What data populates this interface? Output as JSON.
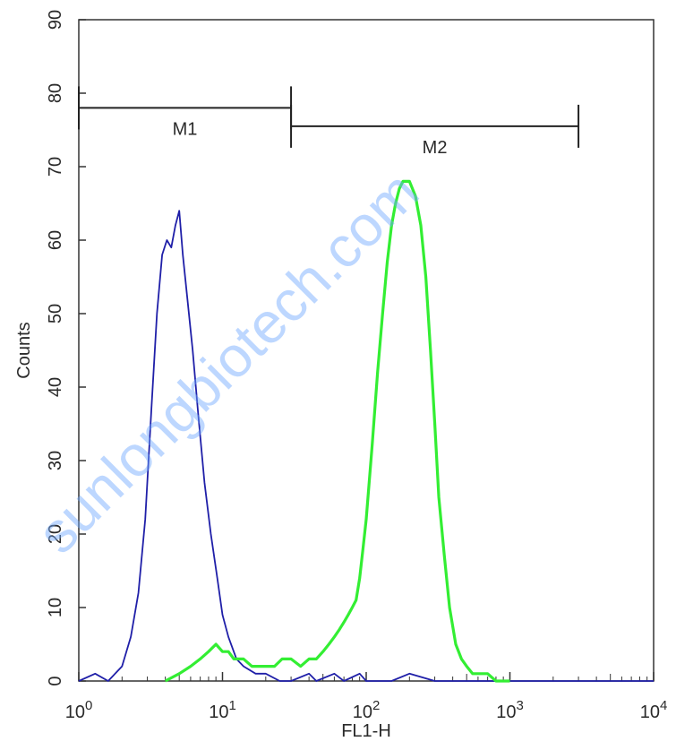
{
  "chart_data": {
    "type": "line",
    "title": "",
    "xlabel": "FL1-H",
    "ylabel": "Counts",
    "xscale": "log",
    "xlim": [
      1,
      10000
    ],
    "ylim": [
      0,
      90
    ],
    "y_ticks": [
      "0",
      "10",
      "20",
      "30",
      "40",
      "50",
      "60",
      "70",
      "80",
      "90"
    ],
    "x_ticks": [
      {
        "value": 1,
        "base": "10",
        "exp": "0"
      },
      {
        "value": 10,
        "base": "10",
        "exp": "1"
      },
      {
        "value": 100,
        "base": "10",
        "exp": "2"
      },
      {
        "value": 1000,
        "base": "10",
        "exp": "3"
      },
      {
        "value": 10000,
        "base": "10",
        "exp": "4"
      }
    ],
    "grid": false,
    "legend": "none",
    "series": [
      {
        "color": "#1f1fa8",
        "x": [
          1,
          1.3,
          1.6,
          2.0,
          2.3,
          2.6,
          2.9,
          3.2,
          3.5,
          3.8,
          4.1,
          4.4,
          4.7,
          5.0,
          5.3,
          5.7,
          6.2,
          6.8,
          7.5,
          8.3,
          9.2,
          10,
          11,
          12.5,
          14,
          17,
          20,
          25,
          30,
          40,
          45,
          60,
          70,
          90,
          100,
          150,
          200,
          300,
          500,
          1000,
          10000
        ],
        "y": [
          0,
          1,
          0,
          2,
          6,
          12,
          22,
          37,
          50,
          58,
          60,
          59,
          62,
          64,
          58,
          52,
          45,
          36,
          27,
          20,
          14,
          9,
          6,
          3,
          2,
          1,
          1,
          0,
          0,
          1,
          0,
          1,
          0,
          1,
          0,
          0,
          1,
          0,
          0,
          0,
          0
        ]
      },
      {
        "color": "#33ee33",
        "x": [
          4,
          5,
          6,
          7,
          8,
          9,
          10,
          11,
          12,
          14,
          16,
          18,
          20,
          23,
          26,
          30,
          35,
          40,
          45,
          50,
          55,
          60,
          65,
          70,
          75,
          80,
          85,
          90,
          95,
          100,
          110,
          120,
          130,
          140,
          150,
          160,
          170,
          180,
          190,
          200,
          220,
          240,
          260,
          280,
          300,
          320,
          350,
          380,
          420,
          460,
          500,
          550,
          600,
          700,
          800,
          900,
          1000
        ],
        "y": [
          0,
          1,
          2,
          3,
          4,
          5,
          4,
          4,
          3,
          3,
          2,
          2,
          2,
          2,
          3,
          3,
          2,
          3,
          3,
          4,
          5,
          6,
          7,
          8,
          9,
          10,
          11,
          14,
          18,
          22,
          32,
          42,
          50,
          57,
          62,
          65,
          67,
          68,
          68,
          68,
          66,
          62,
          55,
          45,
          35,
          25,
          17,
          10,
          5,
          3,
          2,
          1,
          1,
          1,
          0,
          0,
          0
        ]
      }
    ],
    "markers": [
      {
        "label": "M1",
        "x_start": 1,
        "x_end": 30,
        "y": 78
      },
      {
        "label": "M2",
        "x_start": 30,
        "x_end": 3000,
        "y": 75.5
      }
    ]
  },
  "watermark": "sunlongbiotech.com"
}
